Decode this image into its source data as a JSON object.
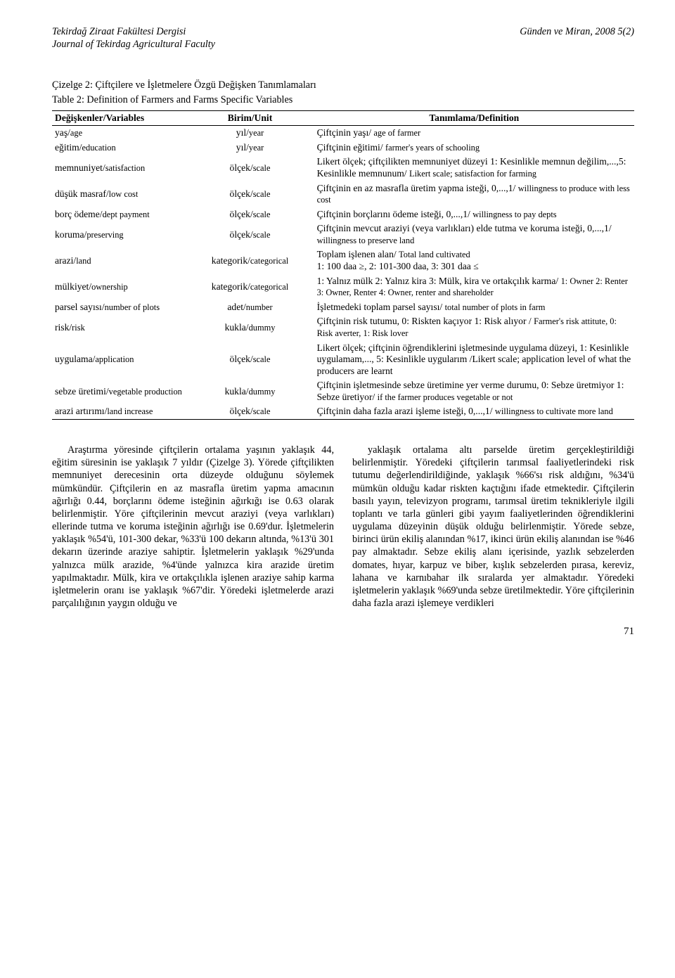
{
  "header": {
    "journal_title_tr": "Tekirdağ Ziraat Fakültesi Dergisi",
    "journal_title_en": "Journal of Tekirdag Agricultural Faculty",
    "citation": "Günden ve Miran, 2008 5(2)"
  },
  "table": {
    "caption_tr": "Çizelge 2: Çiftçilere ve İşletmelere Özgü Değişken Tanımlamaları",
    "caption_en": "Table 2: Definition of Farmers and Farms Specific Variables",
    "col_headers": {
      "var": "Değişkenler/Variables",
      "unit": "Birim/Unit",
      "def": "Tanımlama/Definition"
    },
    "rows": [
      {
        "var": "yaş/age",
        "unit": "yıl/year",
        "def": "Çiftçinin yaşı/ age of farmer"
      },
      {
        "var": "eğitim/education",
        "unit": "yıl/year",
        "def": "Çiftçinin eğitimi/ farmer's years of schooling"
      },
      {
        "var": "memnuniyet/satisfaction",
        "unit": "ölçek/scale",
        "def": "Likert ölçek; çiftçilikten memnuniyet düzeyi 1: Kesinlikle memnun değilim,...,5: Kesinlikle memnunum/ Likert scale; satisfaction for farming"
      },
      {
        "var": "düşük masraf/low cost",
        "unit": "ölçek/scale",
        "def": "Çiftçinin en az masrafla üretim yapma isteği, 0,...,1/ willingness to produce with less cost"
      },
      {
        "var": "borç ödeme/dept payment",
        "unit": "ölçek/scale",
        "def": "Çiftçinin borçlarını ödeme isteği, 0,...,1/ willingness to pay depts"
      },
      {
        "var": "koruma/preserving",
        "unit": "ölçek/scale",
        "def": "Çiftçinin mevcut araziyi (veya varlıkları) elde tutma ve koruma isteği, 0,...,1/ willingness to preserve land"
      },
      {
        "var": "arazi/land",
        "unit": "kategorik/categorical",
        "def": "Toplam işlenen alan/ Total land cultivated\n1: 100 daa ≥, 2: 101-300 daa, 3: 301 daa ≤"
      },
      {
        "var": "mülkiyet/ownership",
        "unit": "kategorik/categorical",
        "def": "1: Yalnız mülk 2: Yalnız kira 3: Mülk, kira ve ortakçılık karma/ 1: Owner 2: Renter 3: Owner, Renter 4: Owner, renter and shareholder"
      },
      {
        "var": "parsel sayısı/number of plots",
        "unit": "adet/number",
        "def": "İşletmedeki toplam parsel sayısı/ total number of plots in farm"
      },
      {
        "var": "risk/risk",
        "unit": "kukla/dummy",
        "def": "Çiftçinin risk tutumu, 0: Riskten kaçıyor 1: Risk alıyor / Farmer's risk attitute, 0: Risk averter, 1: Risk lover"
      },
      {
        "var": "uygulama/application",
        "unit": "ölçek/scale",
        "def": "Likert ölçek; çiftçinin öğrendiklerini işletmesinde uygulama düzeyi, 1: Kesinlikle uygulamam,..., 5: Kesinlikle uygularım /Likert scale; application level of what the producers are learnt"
      },
      {
        "var": "sebze üretimi/vegetable production",
        "unit": "kukla/dummy",
        "def": "Çiftçinin işletmesinde sebze üretimine yer verme durumu, 0: Sebze üretmiyor 1: Sebze üretiyor/ if the farmer produces vegetable or not"
      },
      {
        "var": "arazi artırımı/land increase",
        "unit": "ölçek/scale",
        "def": "Çiftçinin daha fazla arazi işleme isteği, 0,...,1/ willingness to cultivate more land"
      }
    ]
  },
  "body": {
    "left": "Araştırma yöresinde çiftçilerin ortalama yaşının yaklaşık 44, eğitim süresinin ise yaklaşık 7 yıldır (Çizelge 3). Yörede çiftçilikten memnuniyet derecesinin orta düzeyde olduğunu söylemek mümkündür. Çiftçilerin en az masrafla üretim yapma amacının ağırlığı 0.44, borçlarını ödeme isteğinin ağırkığı ise 0.63 olarak belirlenmiştir. Yöre çiftçilerinin mevcut araziyi (veya varlıkları) ellerinde tutma ve koruma isteğinin ağırlığı ise 0.69'dur. İşletmelerin yaklaşık %54'ü, 101-300 dekar, %33'ü 100 dekarın altında, %13'ü 301 dekarın üzerinde araziye sahiptir. İşletmelerin yaklaşık %29'unda yalnızca mülk arazide, %4'ünde yalnızca kira arazide üretim yapılmaktadır. Mülk, kira ve ortakçılıkla işlenen araziye sahip karma işletmelerin oranı ise yaklaşık %67'dir. Yöredeki işletmelerde arazi parçalılığının yaygın olduğu ve",
    "right": "yaklaşık ortalama altı parselde üretim gerçekleştirildiği belirlenmiştir. Yöredeki çiftçilerin tarımsal faaliyetlerindeki risk tutumu değerlendirildiğinde, yaklaşık %66'sı risk aldığını, %34'ü mümkün olduğu kadar riskten kaçtığını ifade etmektedir. Çiftçilerin basılı yayın, televizyon programı, tarımsal üretim teknikleriyle ilgili toplantı ve tarla günleri gibi yayım faaliyetlerinden öğrendiklerini uygulama düzeyinin düşük olduğu belirlenmiştir. Yörede sebze, birinci ürün ekiliş alanından %17, ikinci ürün ekiliş alanından ise %46 pay almaktadır. Sebze ekiliş alanı içerisinde, yazlık sebzelerden domates, hıyar, karpuz ve biber, kışlık sebzelerden pırasa, kereviz, lahana ve karnıbahar ilk sıralarda yer almaktadır. Yöredeki işletmelerin yaklaşık %69'unda sebze üretilmektedir. Yöre çiftçilerinin daha fazla arazi işlemeye verdikleri"
  },
  "page_number": "71"
}
